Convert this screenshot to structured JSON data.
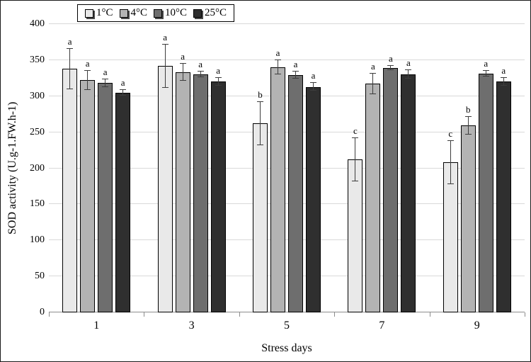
{
  "chart_data": {
    "type": "bar",
    "title": "",
    "xlabel": "Stress days",
    "ylabel": "SOD activity (U.g-1.FW.h-1)",
    "categories": [
      "1",
      "3",
      "5",
      "7",
      "9"
    ],
    "ylim": [
      0,
      400
    ],
    "ytick_step": 50,
    "grid": true,
    "legend_position": "top",
    "error_bar_color": "#3d3d3d",
    "series": [
      {
        "name": "1°C",
        "color": "#e9e9e9",
        "values": [
          338,
          342,
          262,
          212,
          208
        ],
        "errors": [
          28,
          30,
          30,
          30,
          30
        ],
        "letters": [
          "a",
          "a",
          "b",
          "c",
          "c"
        ]
      },
      {
        "name": "4°C",
        "color": "#b3b3b3",
        "values": [
          322,
          333,
          340,
          317,
          259
        ],
        "errors": [
          13,
          12,
          10,
          14,
          12
        ],
        "letters": [
          "a",
          "a",
          "a",
          "a",
          "b"
        ]
      },
      {
        "name": "10°C",
        "color": "#6e6e6e",
        "values": [
          318,
          330,
          329,
          339,
          331
        ],
        "errors": [
          5,
          4,
          5,
          3,
          4
        ],
        "letters": [
          "a",
          "a",
          "a",
          "a",
          "a"
        ]
      },
      {
        "name": "25°C",
        "color": "#2f2f2f",
        "values": [
          305,
          320,
          313,
          330,
          320
        ],
        "errors": [
          4,
          5,
          5,
          6,
          5
        ],
        "letters": [
          "a",
          "a",
          "a",
          "a",
          "a"
        ]
      }
    ]
  }
}
